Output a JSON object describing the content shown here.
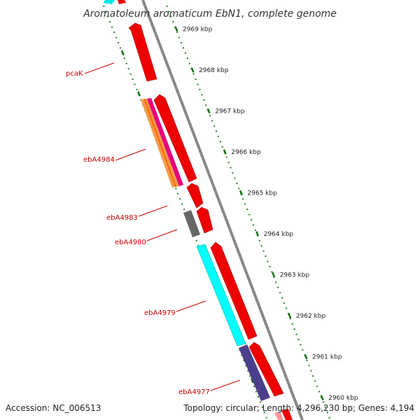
{
  "title": "Aromatoleum aromaticum EbN1, complete genome",
  "accession": "Accession: NC_006513",
  "topology": "Topology: circular; Length: 4,296,230 bp; Genes: 4,194",
  "colors": {
    "gene_red": "#ee0000",
    "gene_cyan": "#00ffff",
    "gene_gray": "#666666",
    "gene_purple": "#4b3f8c",
    "gene_orange": "#f29a4a",
    "gene_magenta": "#e6007e",
    "backbone": "#888888",
    "tick_green": "#006600",
    "label_red": "#cc0000"
  },
  "kbp_labels": [
    "2969 kbp",
    "2968 kbp",
    "2967 kbp",
    "2966 kbp",
    "2965 kbp",
    "2964 kbp",
    "2963 kbp",
    "2962 kbp",
    "2961 kbp",
    "2960 kbp"
  ],
  "gene_labels": [
    "pcaK",
    "ebA4984",
    "ebA4983",
    "ebA4980",
    "ebA4979",
    "ebA4977"
  ]
}
